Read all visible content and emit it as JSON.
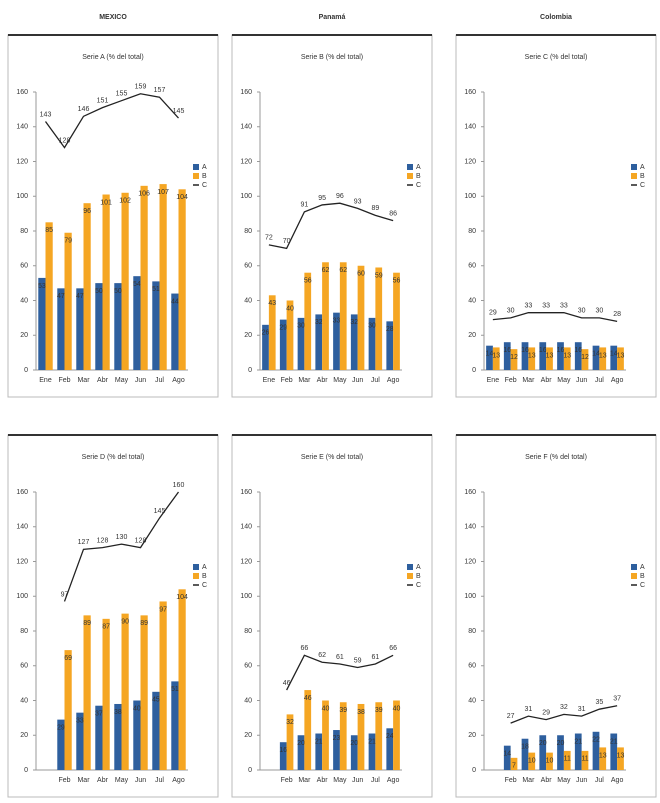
{
  "headers": [
    "MEXICO",
    "Panamá",
    "Colombia"
  ],
  "chart_data": [
    {
      "type": "bar",
      "title": "Serie A (% del total)",
      "categories": [
        "Ene",
        "Feb",
        "Mar",
        "Abr",
        "May",
        "Jun",
        "Jul",
        "Ago"
      ],
      "ylim": [
        0,
        160
      ],
      "yticks": [
        0,
        20,
        40,
        60,
        80,
        100,
        120,
        140,
        160
      ],
      "series": [
        {
          "name": "A",
          "color": "#2e5f9e",
          "values": [
            53,
            47,
            47,
            50,
            50,
            54,
            51,
            44
          ]
        },
        {
          "name": "B",
          "color": "#f5a623",
          "values": [
            85,
            79,
            96,
            101,
            102,
            106,
            107,
            104
          ]
        },
        {
          "name": "C",
          "color": "#222222",
          "type": "line",
          "values": [
            143,
            128,
            146,
            151,
            155,
            159,
            157,
            145
          ]
        }
      ]
    },
    {
      "type": "bar",
      "title": "Serie B (% del total)",
      "categories": [
        "Ene",
        "Feb",
        "Mar",
        "Abr",
        "May",
        "Jun",
        "Jul",
        "Ago"
      ],
      "ylim": [
        0,
        160
      ],
      "yticks": [
        0,
        20,
        40,
        60,
        80,
        100,
        120,
        140,
        160
      ],
      "series": [
        {
          "name": "A",
          "color": "#2e5f9e",
          "values": [
            26,
            29,
            30,
            32,
            33,
            32,
            30,
            28
          ]
        },
        {
          "name": "B",
          "color": "#f5a623",
          "values": [
            43,
            40,
            56,
            62,
            62,
            60,
            59,
            56
          ]
        },
        {
          "name": "C",
          "color": "#222222",
          "type": "line",
          "values": [
            72,
            70,
            91,
            95,
            96,
            93,
            89,
            86
          ]
        }
      ]
    },
    {
      "type": "bar",
      "title": "Serie C (% del total)",
      "categories": [
        "Ene",
        "Feb",
        "Mar",
        "Abr",
        "May",
        "Jun",
        "Jul",
        "Ago"
      ],
      "ylim": [
        0,
        160
      ],
      "yticks": [
        0,
        20,
        40,
        60,
        80,
        100,
        120,
        140,
        160
      ],
      "series": [
        {
          "name": "A",
          "color": "#2e5f9e",
          "values": [
            14,
            16,
            16,
            16,
            16,
            16,
            14,
            14
          ]
        },
        {
          "name": "B",
          "color": "#f5a623",
          "values": [
            13,
            12,
            13,
            13,
            13,
            12,
            13,
            13
          ]
        },
        {
          "name": "C",
          "color": "#222222",
          "type": "line",
          "values": [
            29,
            30,
            33,
            33,
            33,
            30,
            30,
            28
          ]
        }
      ]
    },
    {
      "type": "bar",
      "title": "Serie D (% del total)",
      "categories": [
        null,
        "Feb",
        "Mar",
        "Abr",
        "May",
        "Jun",
        "Jul",
        "Ago"
      ],
      "ylim": [
        0,
        160
      ],
      "yticks": [
        0,
        20,
        40,
        60,
        80,
        100,
        120,
        140,
        160
      ],
      "series": [
        {
          "name": "A",
          "color": "#2e5f9e",
          "values": [
            null,
            29,
            33,
            37,
            38,
            40,
            45,
            51
          ]
        },
        {
          "name": "B",
          "color": "#f5a623",
          "values": [
            null,
            69,
            89,
            87,
            90,
            89,
            97,
            104
          ]
        },
        {
          "name": "C",
          "color": "#222222",
          "type": "line",
          "values": [
            null,
            97,
            127,
            128,
            130,
            128,
            145,
            160
          ]
        }
      ]
    },
    {
      "type": "bar",
      "title": "Serie E (% del total)",
      "categories": [
        null,
        "Feb",
        "Mar",
        "Abr",
        "May",
        "Jun",
        "Jul",
        "Ago"
      ],
      "ylim": [
        0,
        160
      ],
      "yticks": [
        0,
        20,
        40,
        60,
        80,
        100,
        120,
        140,
        160
      ],
      "series": [
        {
          "name": "A",
          "color": "#2e5f9e",
          "values": [
            null,
            16,
            20,
            21,
            23,
            20,
            21,
            24
          ]
        },
        {
          "name": "B",
          "color": "#f5a623",
          "values": [
            null,
            32,
            46,
            40,
            39,
            38,
            39,
            40
          ]
        },
        {
          "name": "C",
          "color": "#222222",
          "type": "line",
          "values": [
            null,
            46,
            66,
            62,
            61,
            59,
            61,
            66
          ]
        }
      ]
    },
    {
      "type": "bar",
      "title": "Serie F (% del total)",
      "categories": [
        null,
        "Feb",
        "Mar",
        "Abr",
        "May",
        "Jun",
        "Jul",
        "Ago"
      ],
      "ylim": [
        0,
        160
      ],
      "yticks": [
        0,
        20,
        40,
        60,
        80,
        100,
        120,
        140,
        160
      ],
      "series": [
        {
          "name": "A",
          "color": "#2e5f9e",
          "values": [
            null,
            14,
            18,
            20,
            20,
            21,
            22,
            21
          ]
        },
        {
          "name": "B",
          "color": "#f5a623",
          "values": [
            null,
            7,
            10,
            10,
            11,
            11,
            13,
            13
          ]
        },
        {
          "name": "C",
          "color": "#222222",
          "type": "line",
          "values": [
            null,
            27,
            31,
            29,
            32,
            31,
            35,
            37
          ]
        }
      ]
    }
  ]
}
